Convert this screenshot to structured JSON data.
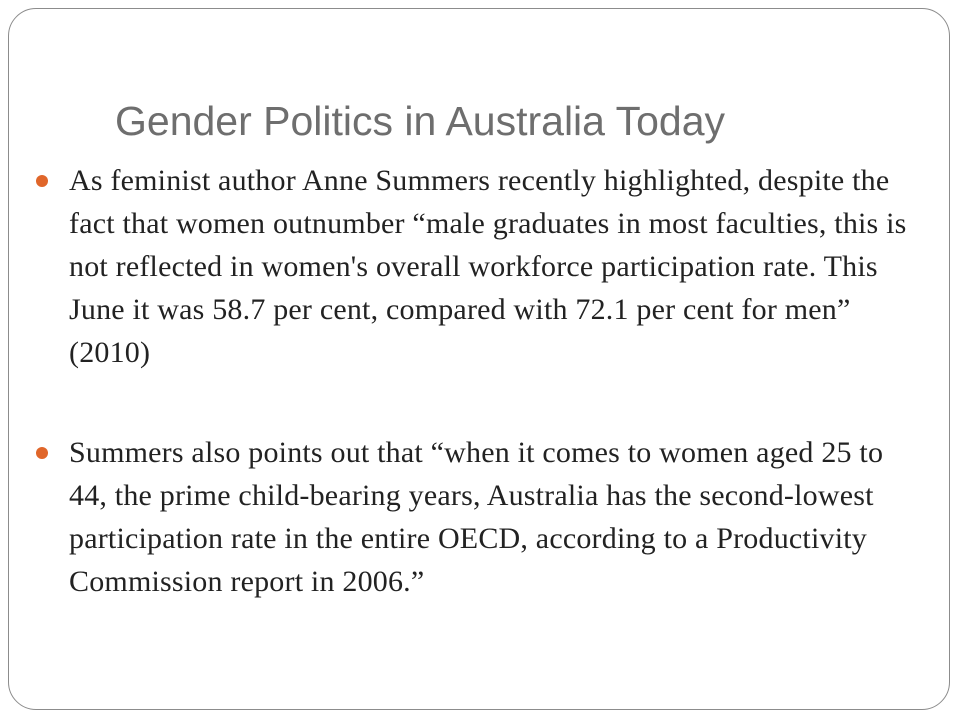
{
  "slide": {
    "title": "Gender Politics in Australia Today",
    "accent_color": "#e0662a",
    "bullets": [
      {
        "text": "As feminist author Anne Summers recently highlighted, despite the fact that women outnumber “male graduates in most faculties, this is not reflected in women's overall workforce participation rate. This June it was 58.7 per cent, compared with 72.1 per cent for men”  (2010)"
      },
      {
        "text": "Summers also points out that “when it comes to women aged 25 to 44, the prime child-bearing years, Australia has the second-lowest participation rate in the entire OECD, according to a Productivity Commission report in 2006.”"
      }
    ]
  }
}
